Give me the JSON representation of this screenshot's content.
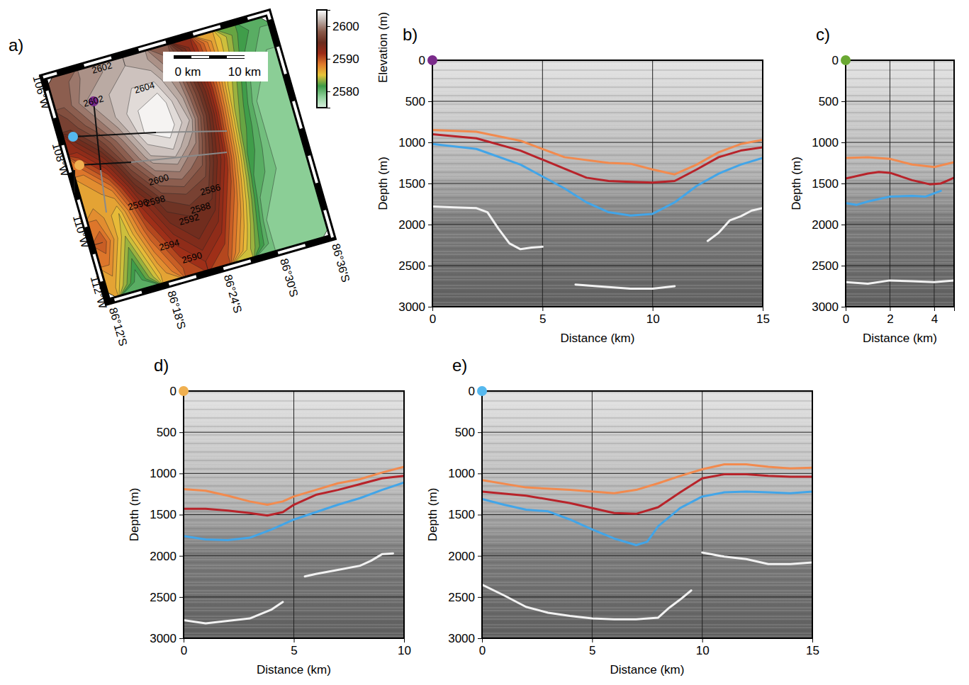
{
  "chart_data": [
    {
      "type": "map",
      "title": "a)",
      "elevation": [
        [
          2598,
          2600,
          2601,
          2602,
          2601,
          2598,
          2592,
          2586,
          2582,
          2580
        ],
        [
          2598,
          2601,
          2602,
          2603,
          2603,
          2600,
          2593,
          2586,
          2581,
          2579
        ],
        [
          2596,
          2599,
          2602,
          2604,
          2605,
          2601,
          2594,
          2585,
          2580,
          2578
        ],
        [
          2592,
          2596,
          2600,
          2604,
          2605,
          2602,
          2594,
          2584,
          2579,
          2578
        ],
        [
          2588,
          2592,
          2598,
          2602,
          2603,
          2600,
          2593,
          2583,
          2579,
          2578
        ],
        [
          2586,
          2588,
          2595,
          2599,
          2600,
          2598,
          2592,
          2582,
          2579,
          2578
        ],
        [
          2588,
          2585,
          2592,
          2596,
          2597,
          2596,
          2590,
          2581,
          2579,
          2578
        ],
        [
          2590,
          2584,
          2590,
          2594,
          2595,
          2594,
          2588,
          2580,
          2578,
          2578
        ],
        [
          2588,
          2582,
          2588,
          2592,
          2594,
          2592,
          2586,
          2579,
          2578,
          2578
        ],
        [
          2586,
          2580,
          2586,
          2590,
          2592,
          2590,
          2584,
          2579,
          2578,
          2578
        ]
      ],
      "colorbar": {
        "lim": [
          2575,
          2605
        ],
        "ticks": [
          2580,
          2590,
          2600
        ],
        "colors": [
          "#d9f0df",
          "#8fd19a",
          "#3c9a46",
          "#e8c53a",
          "#e07a2c",
          "#9c2b17",
          "#6a2d1f",
          "#8a5a4a",
          "#bcaea8",
          "#ffffff"
        ]
      },
      "contour_labels": [
        2602,
        2604,
        2602,
        2600,
        2598,
        2596,
        2586,
        2588,
        2592,
        2594,
        2590
      ],
      "lon_labels": [
        "106°W",
        "108°W",
        "110°W",
        "112°W"
      ],
      "lat_labels": [
        "86°12'S",
        "86°18'S",
        "86°24'S",
        "86°30'S",
        "86°36'S"
      ],
      "scale_bar": [
        "0 km",
        "10 km"
      ]
    },
    {
      "type": "line",
      "title": "b)",
      "color": "#7a2a8a",
      "xlabel": "Distance (km)",
      "ylabel": "Depth (m)",
      "annotations": [
        "Elevation (m)"
      ],
      "grid": true,
      "xlim": [
        0,
        15
      ],
      "xticks": [
        0,
        5,
        10,
        15
      ],
      "ylim": [
        3000,
        0
      ],
      "yticks": [
        0,
        500,
        1000,
        1500,
        2000,
        2500,
        3000
      ],
      "series": [
        {
          "color": "#f28a4e",
          "x": [
            0,
            2,
            4,
            6,
            8,
            9,
            10,
            11,
            12,
            13,
            14,
            15
          ],
          "values": [
            850,
            870,
            980,
            1180,
            1250,
            1260,
            1330,
            1390,
            1270,
            1120,
            1020,
            970
          ]
        },
        {
          "color": "#b8232a",
          "x": [
            0,
            2,
            4,
            6,
            7,
            8,
            9,
            10,
            11,
            12,
            13,
            14,
            15
          ],
          "values": [
            900,
            950,
            1100,
            1320,
            1430,
            1470,
            1480,
            1490,
            1470,
            1330,
            1180,
            1100,
            1060
          ]
        },
        {
          "color": "#42a5e8",
          "x": [
            0,
            2,
            4,
            6,
            7,
            8,
            9,
            10,
            11,
            12,
            13,
            14,
            15
          ],
          "values": [
            1020,
            1080,
            1270,
            1560,
            1730,
            1850,
            1890,
            1870,
            1730,
            1530,
            1380,
            1270,
            1190
          ]
        },
        {
          "color": "#f2f2f2",
          "x": [
            0,
            1,
            2,
            2.5,
            3,
            3.5,
            4,
            4.5,
            5,
            6,
            6.5,
            8,
            9,
            10,
            11,
            12,
            12.5,
            13,
            13.5,
            14,
            14.5,
            15
          ],
          "values": [
            1780,
            1790,
            1800,
            1850,
            2050,
            2230,
            2300,
            2280,
            2270,
            null,
            2730,
            2760,
            2780,
            2780,
            2750,
            null,
            2200,
            2100,
            1950,
            1900,
            1830,
            1800
          ]
        }
      ]
    },
    {
      "type": "line",
      "title": "c)",
      "color": "#6aa832",
      "xlabel": "Distance (km)",
      "ylabel": "Depth (m)",
      "grid": true,
      "xlim": [
        0,
        4.9
      ],
      "xticks": [
        0,
        2,
        4
      ],
      "ylim": [
        3000,
        0
      ],
      "yticks": [
        0,
        500,
        1000,
        1500,
        2000,
        2500,
        3000
      ],
      "series": [
        {
          "color": "#f28a4e",
          "x": [
            0,
            1,
            2,
            3,
            4,
            4.9
          ],
          "values": [
            1190,
            1180,
            1200,
            1270,
            1300,
            1240
          ]
        },
        {
          "color": "#b8232a",
          "x": [
            0,
            1,
            1.5,
            2,
            3,
            3.8,
            4.3,
            4.9
          ],
          "values": [
            1440,
            1380,
            1360,
            1370,
            1460,
            1510,
            1500,
            1430
          ]
        },
        {
          "color": "#42a5e8",
          "x": [
            0,
            0.5,
            1,
            2,
            3,
            3.6,
            4.3
          ],
          "values": [
            1740,
            1760,
            1720,
            1660,
            1650,
            1660,
            1590
          ]
        },
        {
          "color": "#f2f2f2",
          "x": [
            0,
            1,
            2,
            3,
            4,
            4.9
          ],
          "values": [
            2700,
            2720,
            2680,
            2690,
            2700,
            2680
          ]
        }
      ]
    },
    {
      "type": "line",
      "title": "d)",
      "color": "#f0b050",
      "xlabel": "Distance (km)",
      "ylabel": "Depth (m)",
      "grid": true,
      "xlim": [
        0,
        10
      ],
      "xticks": [
        0,
        5,
        10
      ],
      "ylim": [
        3000,
        0
      ],
      "yticks": [
        0,
        500,
        1000,
        1500,
        2000,
        2500,
        3000
      ],
      "series": [
        {
          "color": "#f28a4e",
          "x": [
            0,
            1,
            2,
            3,
            3.8,
            4.5,
            5,
            6,
            7,
            8,
            9,
            10
          ],
          "values": [
            1190,
            1210,
            1270,
            1340,
            1380,
            1340,
            1280,
            1200,
            1120,
            1070,
            990,
            920
          ]
        },
        {
          "color": "#b8232a",
          "x": [
            0,
            1,
            2,
            3,
            3.8,
            4.5,
            5,
            6,
            7,
            8,
            9,
            10
          ],
          "values": [
            1430,
            1430,
            1450,
            1480,
            1510,
            1470,
            1380,
            1260,
            1200,
            1130,
            1060,
            1030
          ]
        },
        {
          "color": "#42a5e8",
          "x": [
            0,
            1,
            2,
            3,
            4,
            5,
            6,
            7,
            8,
            9,
            10
          ],
          "values": [
            1760,
            1800,
            1810,
            1780,
            1680,
            1560,
            1470,
            1380,
            1300,
            1200,
            1110
          ]
        },
        {
          "color": "#f2f2f2",
          "x": [
            0,
            1,
            2,
            3,
            4,
            4.5,
            5,
            5.5,
            6,
            7,
            8,
            8.5,
            9,
            9.5
          ],
          "values": [
            2780,
            2820,
            2790,
            2760,
            2650,
            2560,
            null,
            2250,
            2220,
            2170,
            2120,
            2060,
            1980,
            1970
          ]
        }
      ]
    },
    {
      "type": "line",
      "title": "e)",
      "color": "#55b8ee",
      "xlabel": "Distance (km)",
      "ylabel": "Depth (m)",
      "grid": true,
      "xlim": [
        0,
        15
      ],
      "xticks": [
        0,
        5,
        10,
        15
      ],
      "ylim": [
        3000,
        0
      ],
      "yticks": [
        0,
        500,
        1000,
        1500,
        2000,
        2500,
        3000
      ],
      "series": [
        {
          "color": "#f28a4e",
          "x": [
            0,
            2,
            4,
            6,
            7,
            8,
            9,
            10,
            11,
            12,
            13,
            14,
            15
          ],
          "values": [
            1080,
            1170,
            1200,
            1240,
            1200,
            1120,
            1030,
            950,
            890,
            890,
            920,
            940,
            930
          ]
        },
        {
          "color": "#b8232a",
          "x": [
            0,
            2,
            4,
            5,
            6,
            7,
            8,
            9,
            10,
            11,
            12,
            13,
            14,
            15
          ],
          "values": [
            1220,
            1270,
            1360,
            1420,
            1480,
            1490,
            1410,
            1230,
            1060,
            1010,
            1010,
            1030,
            1040,
            1040
          ]
        },
        {
          "color": "#42a5e8",
          "x": [
            0,
            1,
            2,
            3,
            4,
            5,
            6,
            7,
            7.5,
            8,
            9,
            10,
            11,
            12,
            13,
            14,
            15
          ],
          "values": [
            1310,
            1380,
            1440,
            1460,
            1560,
            1680,
            1790,
            1870,
            1830,
            1640,
            1420,
            1280,
            1230,
            1220,
            1230,
            1240,
            1220
          ]
        },
        {
          "color": "#f2f2f2",
          "x": [
            0,
            1,
            2,
            3,
            4,
            5,
            6,
            7,
            8,
            8.5,
            9,
            9.5,
            9.7,
            10,
            11,
            12,
            13,
            14,
            15
          ],
          "values": [
            2350,
            2480,
            2620,
            2690,
            2730,
            2760,
            2770,
            2770,
            2750,
            2630,
            2530,
            2420,
            null,
            1960,
            2010,
            2040,
            2100,
            2100,
            2080
          ]
        }
      ]
    }
  ]
}
